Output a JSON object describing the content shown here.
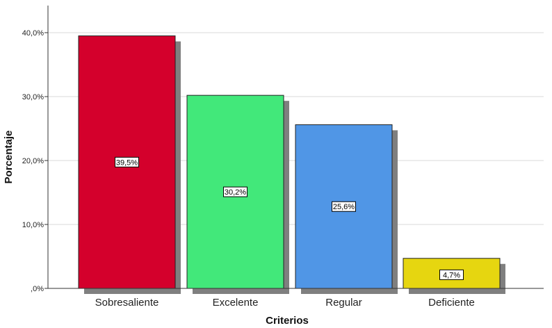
{
  "chart_data": {
    "type": "bar",
    "xlabel": "Criterios",
    "ylabel": "Porcentaje",
    "categories": [
      "Sobresaliente",
      "Excelente",
      "Regular",
      "Deficiente"
    ],
    "values": [
      39.5,
      30.2,
      25.6,
      4.7
    ],
    "data_labels": [
      "39,5%",
      "30,2%",
      "25,6%",
      "4,7%"
    ],
    "colors": [
      "#d4002c",
      "#42e87a",
      "#5096e6",
      "#e6d610"
    ],
    "ylim": [
      0,
      43
    ],
    "yticks": [
      0,
      10,
      20,
      30,
      40
    ],
    "ytick_labels": [
      ",0%",
      "10,0%",
      "20,0%",
      "30,0%",
      "40,0%"
    ],
    "grid": true,
    "legend": "none"
  }
}
